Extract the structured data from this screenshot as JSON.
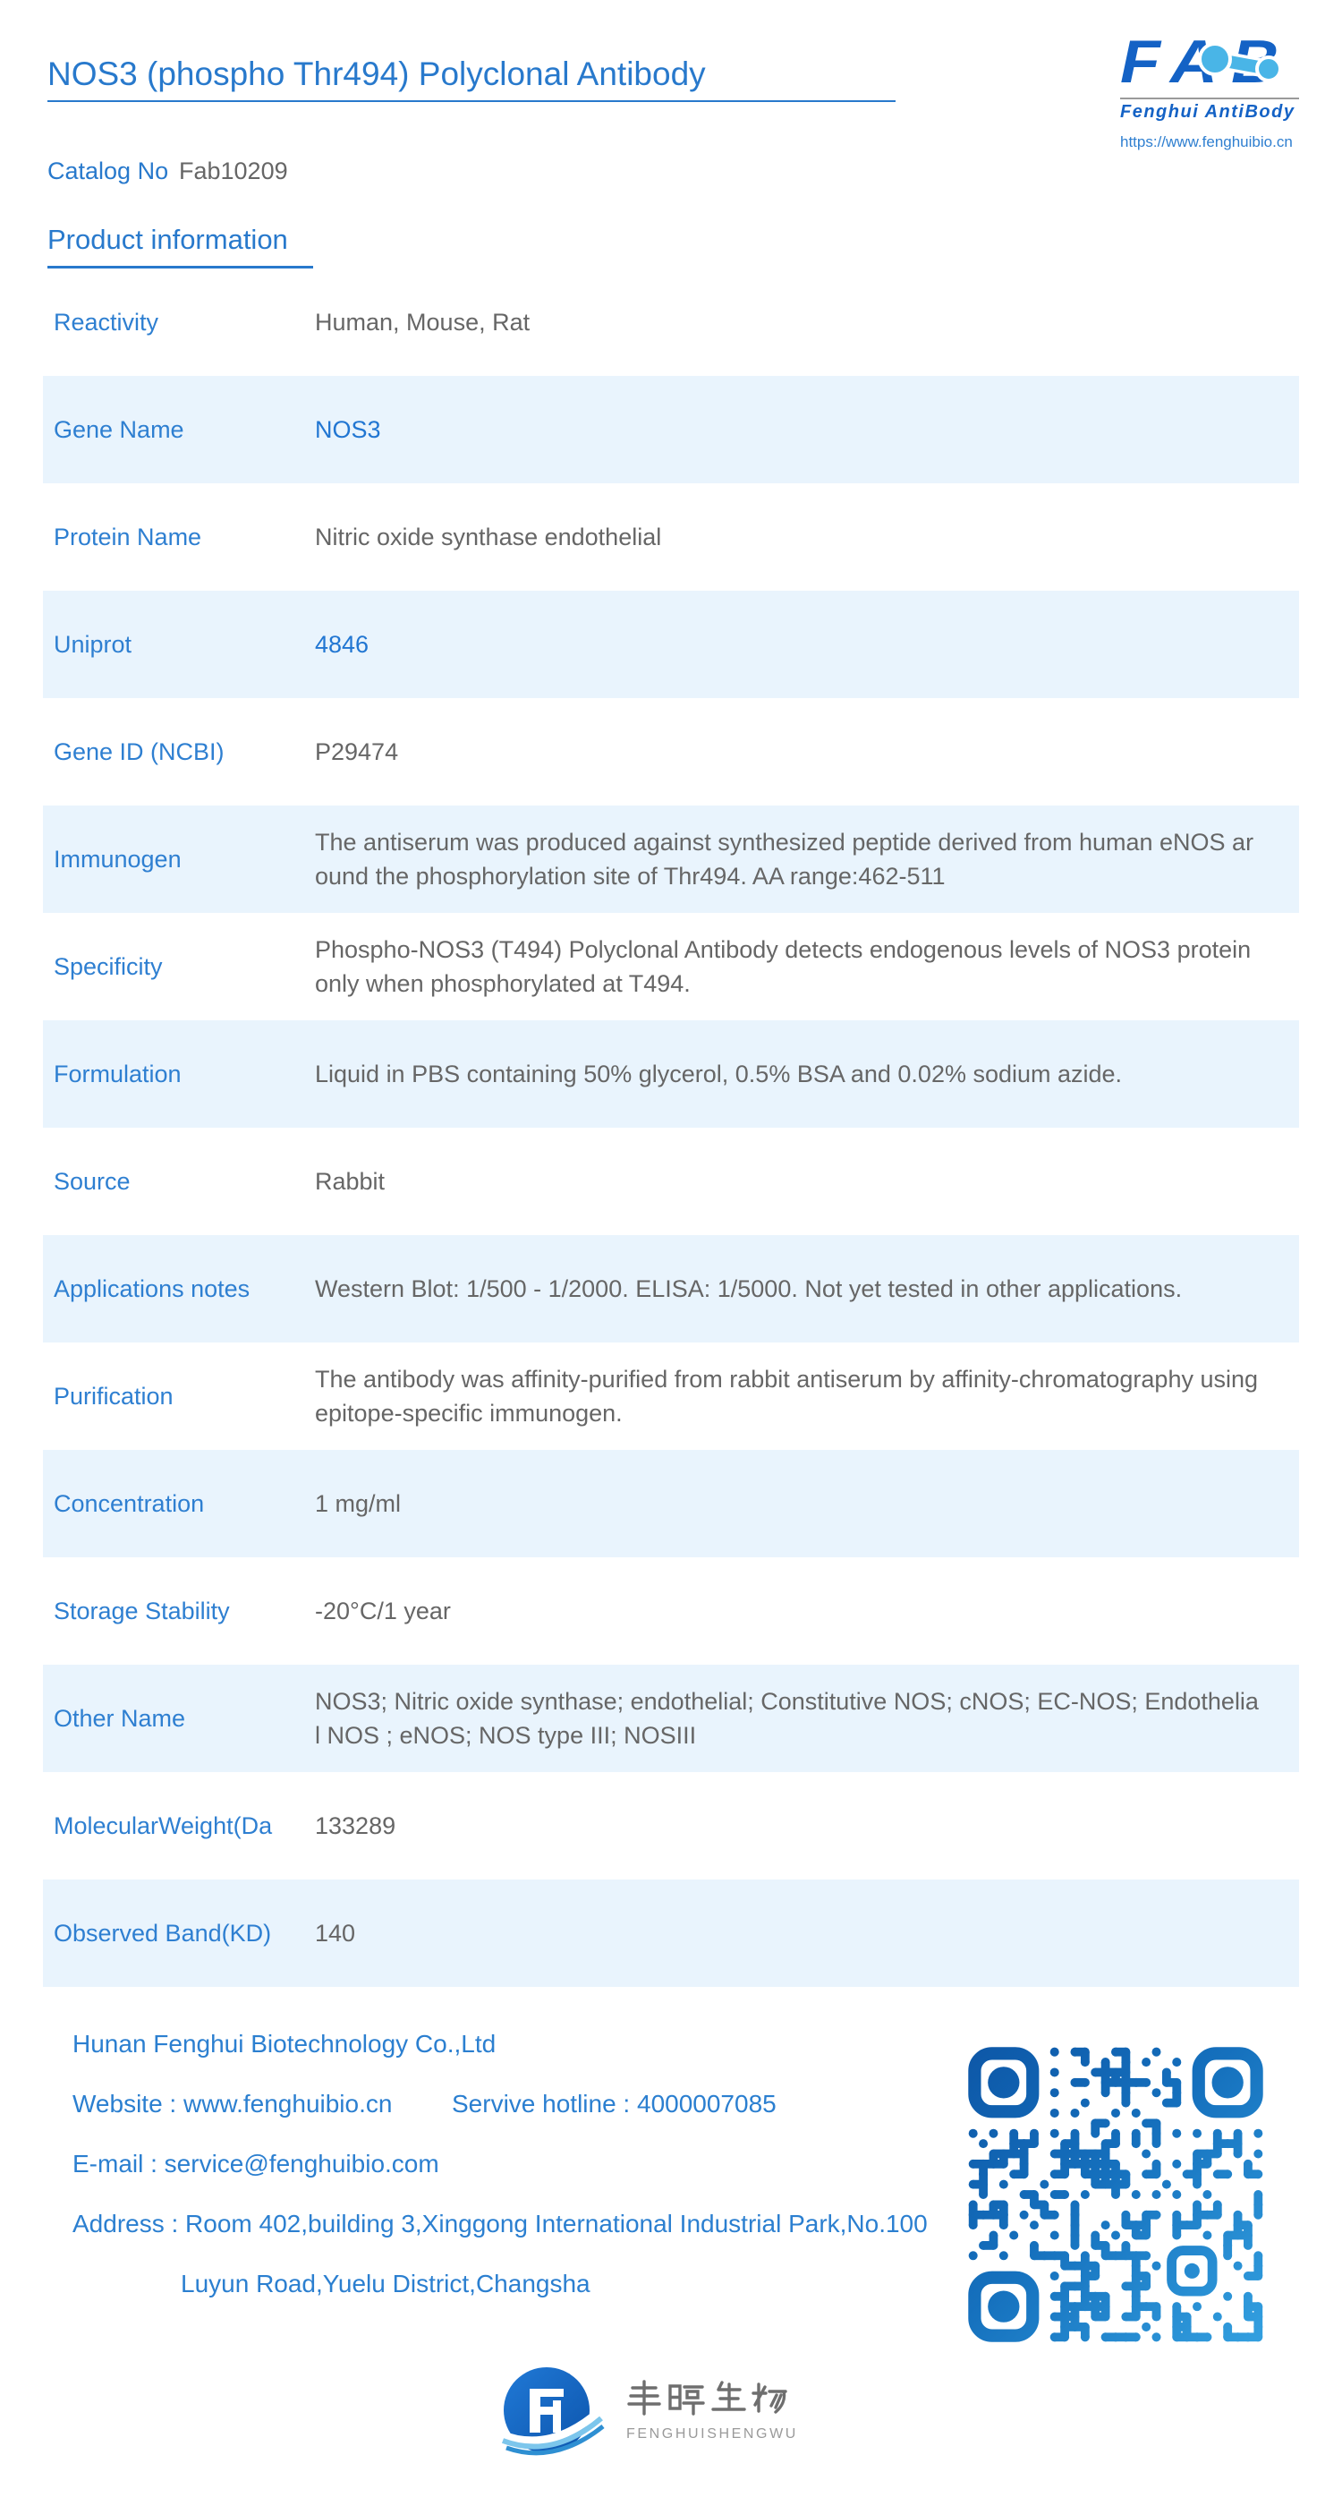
{
  "header": {
    "title": "NOS3 (phospho Thr494) Polyclonal Antibody",
    "catalog": {
      "label": "Catalog No",
      "value": "Fab10209"
    }
  },
  "brand": {
    "logo_text": "FAB",
    "subtitle": "Fenghui AntiBody",
    "url": "https://www.fenghuibio.cn"
  },
  "section": {
    "title": "Product information"
  },
  "product_table": {
    "rows": [
      {
        "label": "Reactivity",
        "value": "Human,  Mouse,  Rat",
        "link": false
      },
      {
        "label": "Gene Name",
        "value": "NOS3",
        "link": true
      },
      {
        "label": "Protein Name",
        "value": "Nitric oxide synthase endothelial",
        "link": false
      },
      {
        "label": "Uniprot",
        "value": "4846",
        "link": true
      },
      {
        "label": "Gene ID (NCBI)",
        "value": "P29474",
        "link": false
      },
      {
        "label": "Immunogen",
        "value": "The antiserum was produced against synthesized peptide derived from human eNOS around the phosphorylation site of Thr494. AA range:462-511",
        "link": false
      },
      {
        "label": "Specificity",
        "value": "Phospho-NOS3 (T494) Polyclonal Antibody detects endogenous levels of NOS3 protein only when phosphorylated at T494.",
        "link": false
      },
      {
        "label": "Formulation",
        "value": "Liquid in PBS containing 50% glycerol,  0.5% BSA and 0.02% sodium azide.",
        "link": false
      },
      {
        "label": "Source",
        "value": "Rabbit",
        "link": false
      },
      {
        "label": "Applications notes",
        "value": "Western Blot: 1/500 - 1/2000. ELISA: 1/5000. Not yet tested in other applications.",
        "link": false
      },
      {
        "label": "Purification",
        "value": "The antibody was affinity-purified from rabbit antiserum by affinity-chromatography using epitope-specific immunogen.",
        "link": false
      },
      {
        "label": "Concentration",
        "value": "1 mg/ml",
        "link": false
      },
      {
        "label": "Storage Stability",
        "value": "-20°C/1 year",
        "link": false
      },
      {
        "label": "Other Name",
        "value": "NOS3; Nitric oxide synthase;  endothelial; Constitutive NOS; cNOS; EC-NOS; Endothelial NOS ; eNOS; NOS type III; NOSIII",
        "link": false
      },
      {
        "label": "MolecularWeight(Da",
        "value": "133289",
        "link": false
      },
      {
        "label": "Observed Band(KD)",
        "value": "140",
        "link": false
      }
    ]
  },
  "footer": {
    "company": "Hunan Fenghui Biotechnology Co.,Ltd",
    "website": "Website : www.fenghuibio.cn",
    "hotline": "Servive hotline : 4000007085",
    "email": "E-mail : service@fenghuibio.com",
    "address1": "Address : Room 402,building 3,Xinggong International Industrial Park,No.100",
    "address2": "Luyun Road,Yuelu District,Changsha"
  },
  "bottom_logo": {
    "name_cn": "丰晖生物",
    "name_en": "FENGHUISHENGWU"
  },
  "colors": {
    "accent_blue": "#2879cc",
    "label_blue": "#2e7fd1",
    "link_blue": "#2176d2",
    "value_gray": "#666666",
    "row_alt_bg": "#e9f4fd",
    "logo_blue": "#1462c5",
    "molecule_blue": "#49b5e7",
    "qr_dark": "#0d57a7",
    "qr_light": "#33a0e0"
  }
}
